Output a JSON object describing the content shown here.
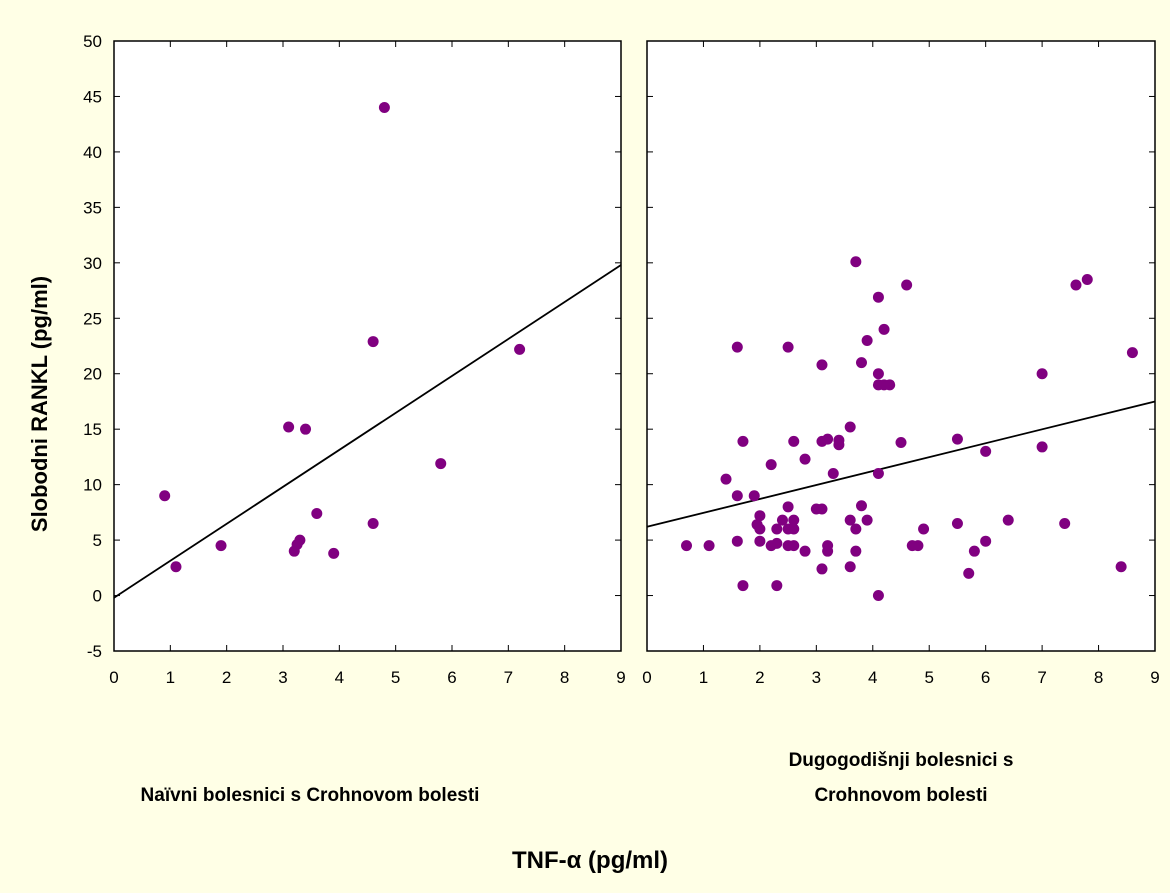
{
  "colors": {
    "background": "#ffffe6",
    "point": "#800080",
    "axes": "#000000"
  },
  "labels": {
    "y_title": "Slobodni RANKL (pg/ml)",
    "x_title": "TNF-α (pg/ml)",
    "panel_left": [
      "Naïvni bolesnici s Crohnovom bolesti"
    ],
    "panel_right": [
      "Dugogodišnji bolesnici s",
      "Crohnovom bolesti"
    ]
  },
  "chart_data": [
    {
      "type": "scatter",
      "name": "Naïvni bolesnici s Crohnovom bolesti",
      "xlim": [
        0,
        9
      ],
      "ylim": [
        -5,
        50
      ],
      "x_ticks": [
        "0",
        "1",
        "2",
        "3",
        "4",
        "5",
        "6",
        "7",
        "8",
        "9"
      ],
      "y_ticks": [
        "-5",
        "0",
        "5",
        "10",
        "15",
        "20",
        "25",
        "30",
        "35",
        "40",
        "45",
        "50"
      ],
      "grid": false,
      "points": [
        [
          0.9,
          9
        ],
        [
          1.1,
          2.6
        ],
        [
          1.9,
          4.5
        ],
        [
          3.1,
          15.2
        ],
        [
          3.2,
          4
        ],
        [
          3.25,
          4.6
        ],
        [
          3.3,
          5
        ],
        [
          3.4,
          15
        ],
        [
          3.6,
          7.4
        ],
        [
          3.9,
          3.8
        ],
        [
          4.6,
          6.5
        ],
        [
          4.6,
          22.9
        ],
        [
          4.8,
          44
        ],
        [
          5.8,
          11.9
        ],
        [
          7.2,
          22.2
        ]
      ],
      "regression": {
        "x": [
          0,
          9
        ],
        "y": [
          -0.2,
          29.8
        ]
      }
    },
    {
      "type": "scatter",
      "name": "Dugogodišnji bolesnici s Crohnovom bolesti",
      "xlim": [
        0,
        9
      ],
      "ylim": [
        -5,
        50
      ],
      "x_ticks": [
        "0",
        "1",
        "2",
        "3",
        "4",
        "5",
        "6",
        "7",
        "8",
        "9"
      ],
      "grid": false,
      "points": [
        [
          0.7,
          4.5
        ],
        [
          1.1,
          4.5
        ],
        [
          1.4,
          10.5
        ],
        [
          1.6,
          22.4
        ],
        [
          1.6,
          9
        ],
        [
          1.6,
          4.9
        ],
        [
          1.7,
          13.9
        ],
        [
          1.7,
          0.9
        ],
        [
          1.9,
          9
        ],
        [
          1.95,
          6.4
        ],
        [
          2.0,
          6
        ],
        [
          2.0,
          7.2
        ],
        [
          2.0,
          4.9
        ],
        [
          2.2,
          11.8
        ],
        [
          2.2,
          4.5
        ],
        [
          2.3,
          4.7
        ],
        [
          2.3,
          6
        ],
        [
          2.3,
          0.9
        ],
        [
          2.4,
          6.8
        ],
        [
          2.5,
          22.4
        ],
        [
          2.5,
          8
        ],
        [
          2.5,
          6
        ],
        [
          2.5,
          4.5
        ],
        [
          2.6,
          13.9
        ],
        [
          2.6,
          6.8
        ],
        [
          2.6,
          6
        ],
        [
          2.6,
          4.5
        ],
        [
          2.8,
          12.3
        ],
        [
          2.8,
          4
        ],
        [
          3.0,
          7.8
        ],
        [
          3.1,
          20.8
        ],
        [
          3.1,
          13.9
        ],
        [
          3.1,
          7.8
        ],
        [
          3.1,
          2.4
        ],
        [
          3.2,
          14.1
        ],
        [
          3.2,
          4.5
        ],
        [
          3.2,
          4
        ],
        [
          3.3,
          11
        ],
        [
          3.4,
          14
        ],
        [
          3.4,
          13.6
        ],
        [
          3.6,
          15.2
        ],
        [
          3.6,
          6.8
        ],
        [
          3.6,
          2.6
        ],
        [
          3.7,
          30.1
        ],
        [
          3.7,
          6
        ],
        [
          3.7,
          4
        ],
        [
          3.8,
          21
        ],
        [
          3.8,
          8.1
        ],
        [
          3.9,
          23
        ],
        [
          3.9,
          6.8
        ],
        [
          4.1,
          26.9
        ],
        [
          4.1,
          20
        ],
        [
          4.1,
          19
        ],
        [
          4.1,
          11
        ],
        [
          4.1,
          0
        ],
        [
          4.2,
          19
        ],
        [
          4.2,
          24
        ],
        [
          4.3,
          19
        ],
        [
          4.5,
          13.8
        ],
        [
          4.6,
          28
        ],
        [
          4.7,
          4.5
        ],
        [
          4.8,
          4.5
        ],
        [
          4.9,
          6
        ],
        [
          5.5,
          14.1
        ],
        [
          5.5,
          6.5
        ],
        [
          5.7,
          2
        ],
        [
          5.8,
          4
        ],
        [
          6.0,
          13
        ],
        [
          6.0,
          4.9
        ],
        [
          6.4,
          6.8
        ],
        [
          7.0,
          20
        ],
        [
          7.0,
          13.4
        ],
        [
          7.4,
          6.5
        ],
        [
          7.6,
          28
        ],
        [
          7.8,
          28.5
        ],
        [
          8.4,
          2.6
        ],
        [
          8.6,
          21.9
        ]
      ],
      "regression": {
        "x": [
          0,
          9
        ],
        "y": [
          6.2,
          17.5
        ]
      }
    }
  ]
}
